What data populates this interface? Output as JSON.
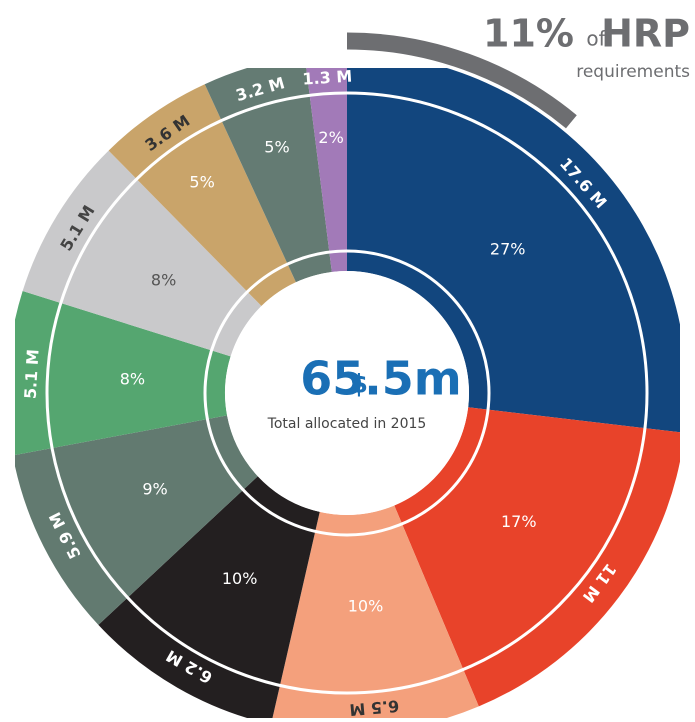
{
  "chart_data": {
    "type": "donut",
    "categories": [
      null,
      null,
      null,
      null,
      null,
      null,
      null,
      null,
      null,
      null
    ],
    "values": [
      17.6,
      11,
      6.5,
      6.2,
      5.9,
      5.1,
      5.1,
      3.6,
      3.2,
      1.3
    ],
    "value_labels": [
      "17.6 M",
      "11 M",
      "6.5 M",
      "6.2 M",
      "5.9 M",
      "5.1 M",
      "5.1 M",
      "3.6 M",
      "3.2 M",
      "1.3 M"
    ],
    "shares": [
      27,
      17,
      10,
      10,
      9,
      8,
      8,
      5,
      5,
      2
    ],
    "share_labels": [
      "27%",
      "17%",
      "10%",
      "10%",
      "9%",
      "8%",
      "8%",
      "5%",
      "5%",
      "2%"
    ],
    "colors": [
      "#12467e",
      "#e8432a",
      "#f4a07c",
      "#231f20",
      "#627a70",
      "#55a670",
      "#c9c9cb",
      "#c9a46a",
      "#647b73",
      "#a27ab8"
    ],
    "total": {
      "value": 65.5,
      "currency": "$",
      "label": "65.5m",
      "caption": "Total allocated in 2015"
    },
    "hrp": {
      "value": 11,
      "label": "11%",
      "of": "of",
      "name": "HRP",
      "caption": "requirements"
    }
  }
}
